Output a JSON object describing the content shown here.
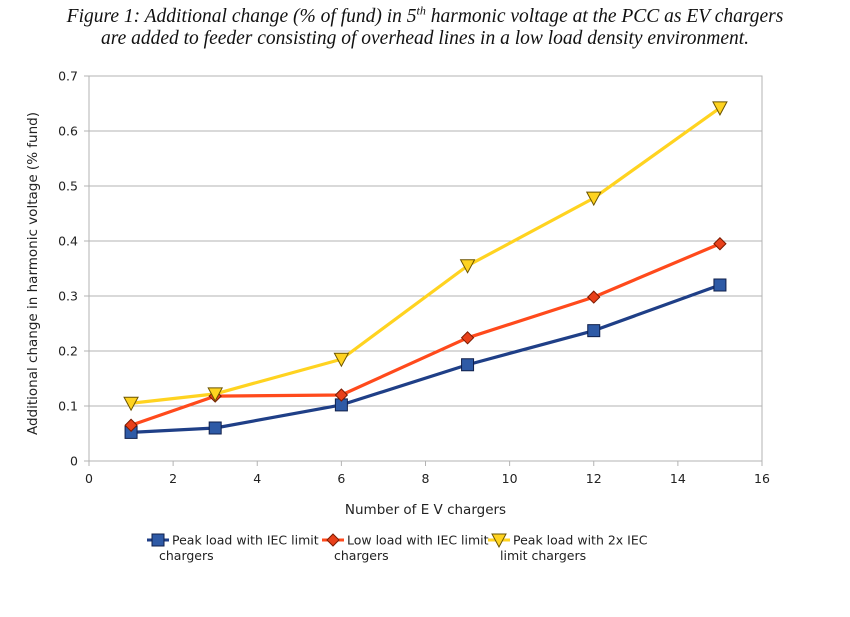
{
  "caption": {
    "line1_a": "Figure 1: Additional change (% of fund) in 5",
    "line1_sup": "th",
    "line1_b": " harmonic voltage at the PCC as EV chargers",
    "line2": "are added to feeder consisting of overhead lines in a low load density environment."
  },
  "chart_data": {
    "type": "line",
    "xlabel": "Number of E V chargers",
    "ylabel": "Additional change in harmonic voltage (% fund)",
    "xlim": [
      0,
      16
    ],
    "ylim": [
      0,
      0.7
    ],
    "x_ticks": [
      "0",
      "2",
      "4",
      "6",
      "8",
      "10",
      "12",
      "14",
      "16"
    ],
    "y_ticks": [
      "0",
      "0.1",
      "0.2",
      "0.3",
      "0.4",
      "0.5",
      "0.6",
      "0.7"
    ],
    "x_tick_values": [
      0,
      2,
      4,
      6,
      8,
      10,
      12,
      14,
      16
    ],
    "y_tick_values": [
      0,
      0.1,
      0.2,
      0.3,
      0.4,
      0.5,
      0.6,
      0.7
    ],
    "grid": "horizontal",
    "legend_position": "bottom",
    "x": [
      1,
      3,
      6,
      9,
      12,
      15
    ],
    "series": [
      {
        "name": "Peak load with IEC limit chargers",
        "name_lines": [
          "Peak load with IEC limit",
          "chargers"
        ],
        "values": [
          0.052,
          0.06,
          0.102,
          0.175,
          0.237,
          0.32
        ],
        "color": "#1f3f87",
        "fill": "#2e5aa6",
        "marker": "square"
      },
      {
        "name": "Low load with IEC limit chargers",
        "name_lines": [
          "Low load with IEC limit",
          "chargers"
        ],
        "values": [
          0.065,
          0.118,
          0.12,
          0.224,
          0.298,
          0.395
        ],
        "color": "#ff4a1c",
        "fill": "#e8401a",
        "marker": "diamond"
      },
      {
        "name": "Peak load with 2x IEC limit chargers",
        "name_lines": [
          "Peak load with 2x IEC",
          "limit chargers"
        ],
        "values": [
          0.105,
          0.122,
          0.185,
          0.355,
          0.478,
          0.642
        ],
        "color": "#ffd320",
        "fill": "#ffd320",
        "marker": "triangle-down"
      }
    ]
  }
}
